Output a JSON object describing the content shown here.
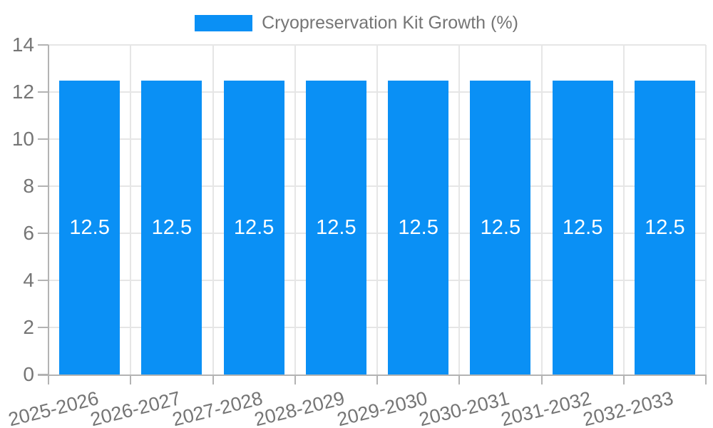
{
  "chart_data": {
    "type": "bar",
    "title": "Cryopreservation Kit Growth (%)",
    "legend": {
      "position": "top",
      "label": "Cryopreservation Kit Growth (%)"
    },
    "categories": [
      "2025-2026",
      "2026-2027",
      "2027-2028",
      "2028-2029",
      "2029-2030",
      "2030-2031",
      "2031-2032",
      "2032-2033"
    ],
    "values": [
      12.5,
      12.5,
      12.5,
      12.5,
      12.5,
      12.5,
      12.5,
      12.5
    ],
    "bar_value_labels": [
      "12.5",
      "12.5",
      "12.5",
      "12.5",
      "12.5",
      "12.5",
      "12.5",
      "12.5"
    ],
    "xlabel": "",
    "ylabel": "",
    "ylim": [
      0,
      14
    ],
    "yticks": [
      0,
      2,
      4,
      6,
      8,
      10,
      12,
      14
    ],
    "grid": true,
    "colors": {
      "bar": "#0a90f5",
      "bar_label": "#ffffff",
      "grid": "#e6e6e6",
      "axis": "#b3b3b3",
      "text": "#757575",
      "background": "#ffffff"
    }
  }
}
